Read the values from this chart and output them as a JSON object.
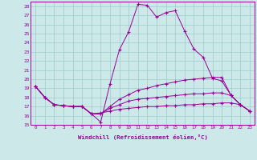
{
  "background_color": "#cce8e8",
  "grid_color": "#99cccc",
  "line_color": "#990099",
  "xlabel": "Windchill (Refroidissement éolien,°C)",
  "xlim": [
    -0.5,
    23.5
  ],
  "ylim": [
    15,
    28.5
  ],
  "ytick_values": [
    15,
    16,
    17,
    18,
    19,
    20,
    21,
    22,
    23,
    24,
    25,
    26,
    27,
    28
  ],
  "series": [
    [
      19.2,
      18.0,
      17.2,
      17.1,
      17.0,
      17.0,
      16.2,
      15.3,
      19.5,
      23.2,
      25.2,
      28.2,
      28.1,
      26.8,
      27.3,
      27.5,
      25.3,
      23.3,
      22.4,
      20.1,
      19.8,
      18.2,
      17.2,
      16.5
    ],
    [
      19.2,
      18.0,
      17.2,
      17.1,
      17.0,
      17.0,
      16.2,
      16.2,
      17.0,
      17.8,
      18.3,
      18.8,
      19.0,
      19.3,
      19.5,
      19.7,
      19.9,
      20.0,
      20.1,
      20.2,
      20.2,
      18.2,
      17.2,
      16.5
    ],
    [
      19.2,
      18.0,
      17.2,
      17.1,
      17.0,
      17.0,
      16.2,
      16.3,
      16.5,
      16.7,
      16.8,
      16.9,
      17.0,
      17.0,
      17.1,
      17.1,
      17.2,
      17.2,
      17.3,
      17.3,
      17.4,
      17.4,
      17.2,
      16.5
    ],
    [
      19.2,
      18.0,
      17.2,
      17.1,
      17.0,
      17.0,
      16.2,
      16.2,
      16.8,
      17.2,
      17.6,
      17.8,
      17.9,
      18.0,
      18.1,
      18.2,
      18.3,
      18.4,
      18.4,
      18.5,
      18.5,
      18.2,
      17.2,
      16.5
    ]
  ]
}
